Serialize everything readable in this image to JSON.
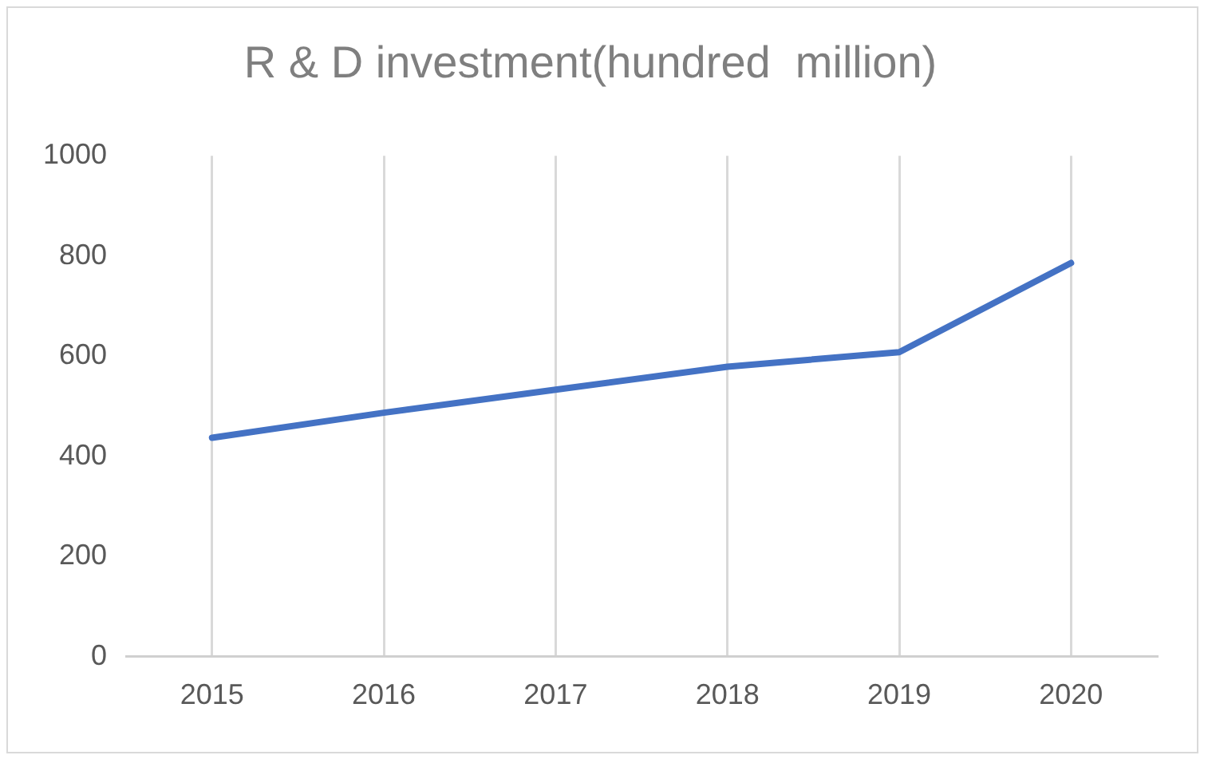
{
  "chart_data": {
    "type": "line",
    "title": "R & D investment(hundred  million)",
    "categories": [
      "2015",
      "2016",
      "2017",
      "2018",
      "2019",
      "2020"
    ],
    "series": [
      {
        "color": "#4472c4",
        "values": [
          437,
          487,
          533,
          579,
          608,
          786
        ]
      }
    ],
    "ylim": [
      0,
      1000
    ],
    "yticks": [
      0,
      200,
      400,
      600,
      800,
      1000
    ],
    "grid": "x",
    "legend": false,
    "marker": "none",
    "line_style": "solid"
  }
}
